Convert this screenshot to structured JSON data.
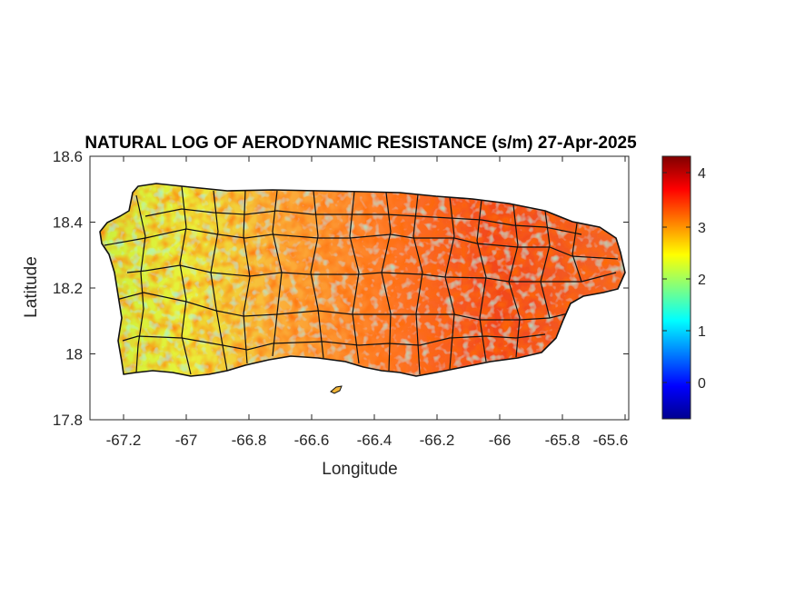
{
  "title": "NATURAL LOG OF AERODYNAMIC RESISTANCE (s/m) 27-Apr-2025",
  "xlabel": "Longitude",
  "ylabel": "Latitude",
  "x_ticks": [
    "-67.2",
    "-67",
    "-66.8",
    "-66.6",
    "-66.4",
    "-66.2",
    "-66",
    "-65.8",
    "-65.6"
  ],
  "y_ticks": [
    "18.6",
    "18.4",
    "18.2",
    "18",
    "17.8"
  ],
  "colorbar_ticks": [
    "4",
    "3",
    "2",
    "1",
    "0"
  ],
  "chart_data": {
    "type": "heatmap",
    "title": "NATURAL LOG OF AERODYNAMIC RESISTANCE (s/m) 27-Apr-2025",
    "xlabel": "Longitude",
    "ylabel": "Latitude",
    "xlim": [
      -67.3,
      -65.58
    ],
    "ylim": [
      17.8,
      18.6
    ],
    "x_tick_values": [
      -67.2,
      -67,
      -66.8,
      -66.6,
      -66.4,
      -66.2,
      -66,
      -65.8,
      -65.6
    ],
    "y_tick_values": [
      18.6,
      18.4,
      18.2,
      18,
      17.8
    ],
    "colorbar": {
      "colormap": "jet",
      "range": [
        -0.7,
        4.4
      ],
      "tick_values": [
        0,
        1,
        2,
        3,
        4
      ]
    },
    "region": "Puerto Rico",
    "region_fill_mean_by_longitude": [
      {
        "lon": -67.25,
        "value": 2.3
      },
      {
        "lon": -67.0,
        "value": 2.4
      },
      {
        "lon": -66.8,
        "value": 2.8
      },
      {
        "lon": -66.6,
        "value": 2.8
      },
      {
        "lon": -66.4,
        "value": 3.1
      },
      {
        "lon": -66.2,
        "value": 3.2
      },
      {
        "lon": -66.0,
        "value": 3.6
      },
      {
        "lon": -65.8,
        "value": 3.3
      },
      {
        "lon": -65.65,
        "value": 3.2
      }
    ],
    "grid": false
  }
}
